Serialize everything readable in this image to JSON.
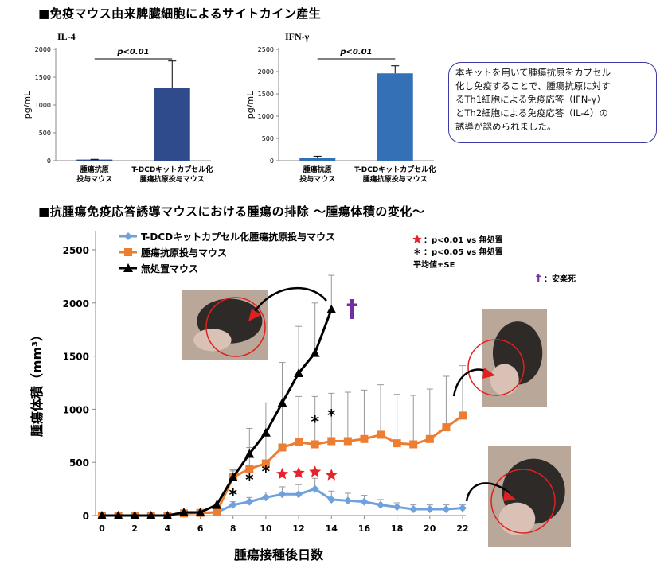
{
  "sections": {
    "cytokine_heading": "■免疫マウス由来脾臓細胞によるサイトカイン産生",
    "tumor_heading": "■抗腫瘍免疫応答誘導マウスにおける腫瘍の排除 ～腫瘍体積の変化～"
  },
  "note_lines": [
    "本キットを用いて腫瘍抗原をカプセル",
    "化し免疫することで、腫瘍抗原に対す",
    "るTh1細胞による免疫応答（IFN-γ）",
    "とTh2細胞による免疫応答（IL-4）の",
    "誘導が認められました。"
  ],
  "chart_data": [
    {
      "type": "bar",
      "title": "IL-4",
      "ylabel": "pg/mL",
      "ylim": [
        0,
        2000
      ],
      "yticks": [
        "0",
        "500",
        "1000",
        "1500",
        "2000"
      ],
      "categories": [
        [
          "腫瘍抗原",
          "投与マウス"
        ],
        [
          "T-DCDキットカプセル化",
          "腫瘍抗原投与マウス"
        ]
      ],
      "values": [
        20,
        1310
      ],
      "errors": [
        5,
        480
      ],
      "annotation": "p<0.01",
      "color": "#2f4b8c"
    },
    {
      "type": "bar",
      "title": "IFN-γ",
      "ylabel": "pg/mL",
      "ylim": [
        0,
        2500
      ],
      "yticks": [
        "0",
        "500",
        "1000",
        "1500",
        "2000",
        "2500"
      ],
      "categories": [
        [
          "腫瘍抗原",
          "投与マウス"
        ],
        [
          "T-DCDキットカプセル化",
          "腫瘍抗原投与マウス"
        ]
      ],
      "values": [
        60,
        1960
      ],
      "errors": [
        40,
        170
      ],
      "annotation": "p<0.01",
      "color": "#3470b5"
    },
    {
      "type": "line",
      "xlabel": "腫瘍接種後日数",
      "ylabel": "腫瘍体積（mm³）",
      "xlim": [
        0,
        22
      ],
      "ylim": [
        0,
        2500
      ],
      "xticks": [
        0,
        2,
        4,
        6,
        8,
        10,
        12,
        14,
        16,
        18,
        20,
        22
      ],
      "yticks": [
        0,
        500,
        1000,
        1500,
        2000,
        2500
      ],
      "grid": false,
      "legend_position": "top-left",
      "series": [
        {
          "name": "T-DCDキットカプセル化腫瘍抗原投与マウス",
          "color": "#6fa1dc",
          "marker": "diamond",
          "x": [
            0,
            1,
            2,
            3,
            4,
            5,
            6,
            7,
            8,
            9,
            10,
            11,
            12,
            13,
            14,
            15,
            16,
            17,
            18,
            19,
            20,
            21,
            22
          ],
          "values": [
            0,
            0,
            0,
            0,
            0,
            20,
            25,
            30,
            100,
            130,
            170,
            200,
            200,
            250,
            150,
            140,
            130,
            100,
            80,
            60,
            60,
            60,
            70
          ],
          "errors": [
            0,
            0,
            0,
            0,
            0,
            0,
            0,
            0,
            30,
            40,
            50,
            70,
            90,
            100,
            80,
            70,
            60,
            50,
            40,
            40,
            40,
            40,
            30
          ]
        },
        {
          "name": "腫瘍抗原投与マウス",
          "color": "#ed7d31",
          "marker": "square",
          "x": [
            0,
            1,
            2,
            3,
            4,
            5,
            6,
            7,
            8,
            9,
            10,
            11,
            12,
            13,
            14,
            15,
            16,
            17,
            18,
            19,
            20,
            21,
            22
          ],
          "values": [
            0,
            0,
            0,
            0,
            0,
            20,
            25,
            30,
            360,
            440,
            490,
            640,
            690,
            670,
            700,
            700,
            720,
            760,
            680,
            670,
            720,
            830,
            940
          ],
          "errors": [
            0,
            0,
            0,
            0,
            0,
            0,
            0,
            0,
            60,
            200,
            260,
            400,
            430,
            450,
            450,
            460,
            460,
            470,
            460,
            460,
            470,
            480,
            470
          ]
        },
        {
          "name": "無処置マウス",
          "color": "#000000",
          "marker": "triangle",
          "x": [
            0,
            1,
            2,
            3,
            4,
            5,
            6,
            7,
            8,
            9,
            10,
            11,
            12,
            13,
            14
          ],
          "values": [
            0,
            0,
            0,
            0,
            0,
            30,
            30,
            100,
            360,
            580,
            780,
            1060,
            1340,
            1530,
            1940
          ],
          "errors": [
            0,
            0,
            0,
            0,
            0,
            0,
            0,
            0,
            70,
            240,
            280,
            380,
            440,
            470,
            320
          ]
        }
      ],
      "significance": {
        "star_legend": "：p<0.01 vs 無処置",
        "asterisk_legend": "：p<0.05 vs 無処置",
        "mean_label": "平均値±SE",
        "stars_at": [
          11,
          12,
          13,
          14
        ],
        "asterisks_at": [
          8,
          9,
          10,
          13,
          14
        ]
      },
      "euthanasia": {
        "symbol": "†",
        "label": "：安楽死"
      }
    }
  ]
}
